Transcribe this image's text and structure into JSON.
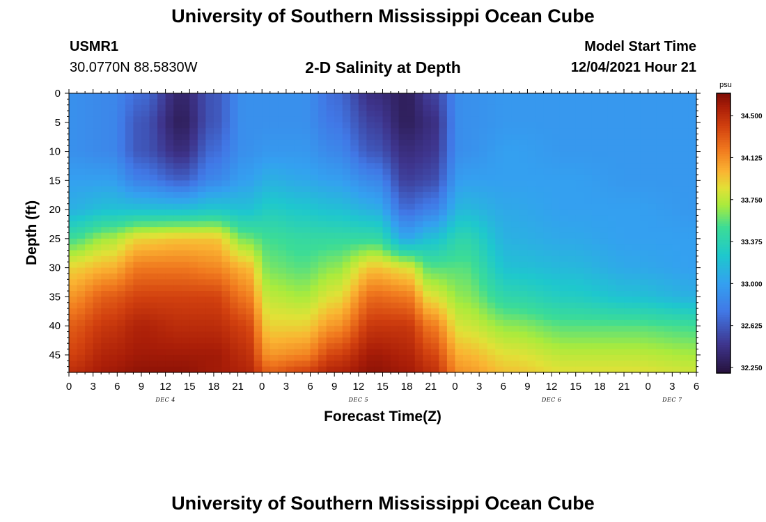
{
  "page": {
    "title": "University of Southern Mississippi Ocean Cube",
    "footer_title": "University of Southern Mississippi Ocean Cube",
    "station": "USMR1",
    "coordinates": "30.0770N  88.5830W",
    "plot_title": "2-D Salinity at Depth",
    "model_start_label": "Model Start Time",
    "model_start_value": "12/04/2021 Hour 21"
  },
  "chart_data": {
    "type": "heatmap",
    "title": "2-D Salinity at Depth",
    "xlabel": "Forecast Time(Z)",
    "ylabel": "Depth (ft)",
    "x_unit": "hours",
    "x_ticks": [
      "0",
      "3",
      "6",
      "9",
      "12",
      "15",
      "18",
      "21",
      "0",
      "3",
      "6",
      "9",
      "12",
      "15",
      "18",
      "21",
      "0",
      "3",
      "6",
      "9",
      "12",
      "15",
      "18",
      "21",
      "0",
      "3",
      "6"
    ],
    "x_range_hours": [
      0,
      78
    ],
    "day_labels": [
      {
        "label": "DEC 4",
        "hour": 12
      },
      {
        "label": "DEC 5",
        "hour": 36
      },
      {
        "label": "DEC 6",
        "hour": 60
      },
      {
        "label": "DEC 7",
        "hour": 75
      }
    ],
    "y_ticks": [
      0,
      5,
      10,
      15,
      20,
      25,
      30,
      35,
      40,
      45
    ],
    "ylim": [
      48,
      0
    ],
    "colorbar": {
      "unit": "psu",
      "range": [
        32.2,
        34.7
      ],
      "ticks": [
        "34.500",
        "34.125",
        "33.750",
        "33.375",
        "33.000",
        "32.625",
        "32.250"
      ]
    },
    "profile_depths_ft": [
      0,
      5,
      10,
      15,
      20,
      25,
      30,
      35,
      40,
      45,
      48
    ],
    "profiles": [
      {
        "hour": 0,
        "values": [
          32.9,
          32.9,
          32.9,
          33.0,
          33.1,
          33.5,
          33.9,
          34.1,
          34.3,
          34.4,
          34.5
        ]
      },
      {
        "hour": 5,
        "values": [
          32.85,
          32.85,
          32.85,
          33.0,
          33.2,
          33.7,
          34.0,
          34.3,
          34.45,
          34.55,
          34.6
        ]
      },
      {
        "hour": 9,
        "values": [
          32.7,
          32.6,
          32.6,
          32.8,
          33.2,
          33.9,
          34.2,
          34.4,
          34.55,
          34.6,
          34.65
        ]
      },
      {
        "hour": 14,
        "values": [
          32.35,
          32.3,
          32.4,
          32.65,
          33.2,
          33.95,
          34.2,
          34.4,
          34.5,
          34.6,
          34.65
        ]
      },
      {
        "hour": 18,
        "values": [
          32.6,
          32.6,
          32.7,
          32.85,
          33.25,
          33.95,
          34.15,
          34.4,
          34.5,
          34.6,
          34.6
        ]
      },
      {
        "hour": 22,
        "values": [
          32.9,
          32.9,
          32.9,
          33.0,
          33.2,
          33.6,
          34.0,
          34.2,
          34.4,
          34.5,
          34.55
        ]
      },
      {
        "hour": 25,
        "values": [
          32.9,
          32.9,
          32.95,
          33.1,
          33.3,
          33.5,
          33.6,
          33.75,
          33.9,
          34.1,
          34.3
        ]
      },
      {
        "hour": 29,
        "values": [
          32.9,
          32.9,
          32.95,
          33.05,
          33.25,
          33.45,
          33.55,
          33.7,
          33.9,
          34.15,
          34.4
        ]
      },
      {
        "hour": 33,
        "values": [
          32.7,
          32.75,
          32.85,
          33.0,
          33.2,
          33.45,
          33.65,
          33.85,
          34.1,
          34.4,
          34.55
        ]
      },
      {
        "hour": 38,
        "values": [
          32.4,
          32.5,
          32.6,
          32.85,
          33.1,
          33.45,
          33.95,
          34.25,
          34.45,
          34.6,
          34.65
        ]
      },
      {
        "hour": 42,
        "values": [
          32.3,
          32.3,
          32.4,
          32.5,
          32.7,
          33.05,
          33.85,
          34.2,
          34.45,
          34.55,
          34.6
        ]
      },
      {
        "hour": 45,
        "values": [
          32.5,
          32.4,
          32.45,
          32.55,
          32.8,
          33.2,
          33.55,
          33.85,
          34.2,
          34.4,
          34.5
        ]
      },
      {
        "hour": 49,
        "values": [
          32.9,
          32.9,
          32.9,
          33.0,
          33.15,
          33.4,
          33.55,
          33.65,
          33.8,
          34.0,
          34.1
        ]
      },
      {
        "hour": 55,
        "values": [
          32.95,
          32.95,
          33.0,
          33.0,
          33.05,
          33.1,
          33.2,
          33.4,
          33.65,
          33.85,
          33.95
        ]
      },
      {
        "hour": 62,
        "values": [
          32.95,
          32.95,
          32.95,
          33.0,
          33.0,
          33.05,
          33.15,
          33.3,
          33.55,
          33.75,
          33.85
        ]
      },
      {
        "hour": 70,
        "values": [
          32.95,
          32.95,
          32.95,
          32.95,
          33.0,
          33.0,
          33.05,
          33.2,
          33.55,
          33.75,
          33.85
        ]
      },
      {
        "hour": 78,
        "values": [
          32.95,
          32.95,
          32.95,
          32.95,
          32.95,
          33.0,
          33.0,
          33.1,
          33.5,
          33.7,
          33.8
        ]
      }
    ]
  }
}
